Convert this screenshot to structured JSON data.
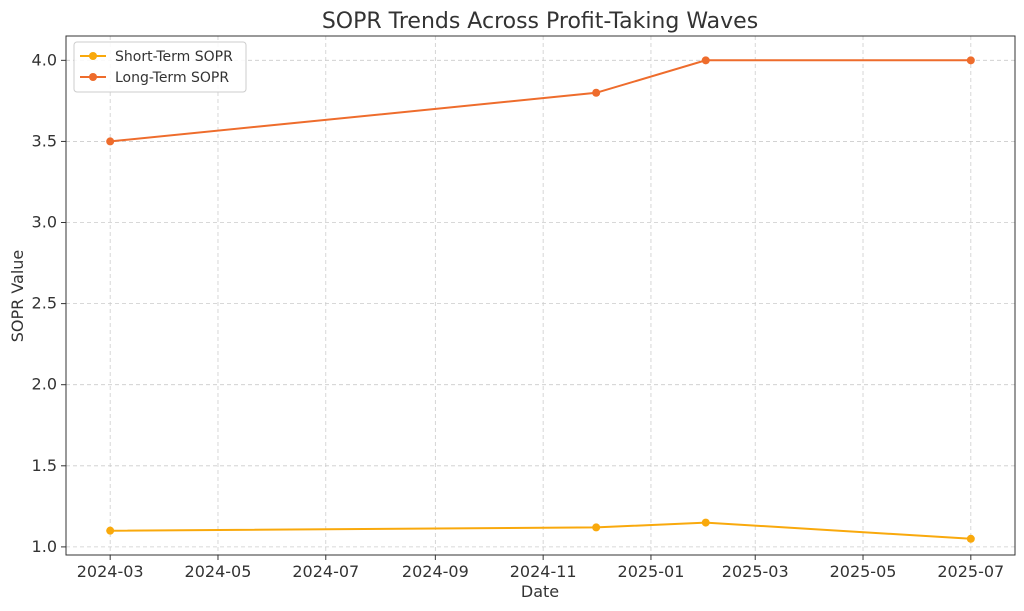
{
  "chart_data": {
    "type": "line",
    "title": "SOPR Trends Across Profit-Taking Waves",
    "xlabel": "Date",
    "ylabel": "SOPR Value",
    "x_ticks": [
      "2024-03",
      "2024-05",
      "2024-07",
      "2024-09",
      "2024-11",
      "2025-01",
      "2025-03",
      "2025-05",
      "2025-07"
    ],
    "y_ticks": [
      "1.0",
      "1.5",
      "2.0",
      "2.5",
      "3.0",
      "3.5",
      "4.0"
    ],
    "ylim": [
      0.95,
      4.15
    ],
    "xlim": [
      "2024-02-05",
      "2025-07-26"
    ],
    "grid": true,
    "legend_position": "top-left",
    "series": [
      {
        "name": "Short-Term SOPR",
        "color": "#f9a90c",
        "points": [
          {
            "x": "2024-03-01",
            "y": 1.1
          },
          {
            "x": "2024-12-01",
            "y": 1.12
          },
          {
            "x": "2025-02-01",
            "y": 1.15
          },
          {
            "x": "2025-07-01",
            "y": 1.05
          }
        ]
      },
      {
        "name": "Long-Term SOPR",
        "color": "#ee6c2c",
        "points": [
          {
            "x": "2024-03-01",
            "y": 3.5
          },
          {
            "x": "2024-12-01",
            "y": 3.8
          },
          {
            "x": "2025-02-01",
            "y": 4.0
          },
          {
            "x": "2025-07-01",
            "y": 4.0
          }
        ]
      }
    ]
  }
}
